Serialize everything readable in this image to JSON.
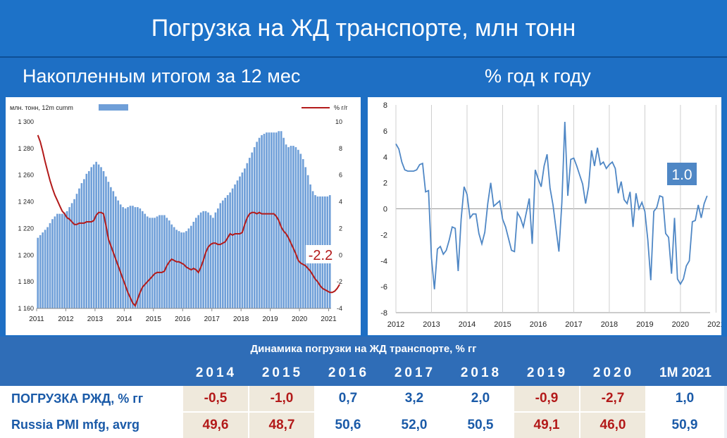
{
  "header": {
    "title": "Погрузка на ЖД транспорте, млн тонн",
    "left_subtitle": "Накопленным итогом за 12 мес",
    "right_subtitle": "% год к году"
  },
  "colors": {
    "bars": "#6f9fd8",
    "line_red": "#b31a1a",
    "line_blue": "#4f87c5",
    "header_bg": "#1d72c8"
  },
  "chart_data": [
    {
      "type": "bar",
      "legend_bar": "млн. тонн, 12m cumm",
      "legend_line": "% г/г",
      "legend_placement": "top",
      "y_left_ticks": [
        "1 300",
        "1 280",
        "1 260",
        "1 240",
        "1 220",
        "1 200",
        "1 180",
        "1 160"
      ],
      "ylim_left": [
        1160,
        1300
      ],
      "y_right_ticks": [
        "10",
        "8",
        "6",
        "4",
        "2",
        "0",
        "-2",
        "-4"
      ],
      "ylim_right": [
        -4,
        10
      ],
      "x_ticks": [
        "2011",
        "2012",
        "2013",
        "2014",
        "2015",
        "2016",
        "2017",
        "2018",
        "2019",
        "2020",
        "2021"
      ],
      "annotation": "-2.2",
      "series": [
        {
          "values": [
            1213,
            1215,
            1217,
            1219,
            1221,
            1224,
            1227,
            1229,
            1231,
            1231,
            1231,
            1232,
            1233,
            1236,
            1239,
            1242,
            1246,
            1250,
            1254,
            1257,
            1261,
            1263,
            1266,
            1268,
            1270,
            1268,
            1266,
            1263,
            1259,
            1255,
            1251,
            1248,
            1244,
            1241,
            1238,
            1236,
            1235,
            1236,
            1237,
            1237,
            1236,
            1236,
            1235,
            1233,
            1231,
            1229,
            1228,
            1228,
            1228,
            1229,
            1230,
            1230,
            1230,
            1228,
            1226,
            1223,
            1221,
            1219,
            1218,
            1217,
            1217,
            1218,
            1220,
            1222,
            1225,
            1228,
            1230,
            1232,
            1233,
            1233,
            1232,
            1230,
            1228,
            1232,
            1235,
            1239,
            1241,
            1243,
            1245,
            1247,
            1250,
            1253,
            1256,
            1259,
            1262,
            1265,
            1269,
            1273,
            1277,
            1281,
            1285,
            1288,
            1290,
            1291,
            1292,
            1292,
            1292,
            1292,
            1292,
            1293,
            1293,
            1288,
            1283,
            1281,
            1282,
            1282,
            1281,
            1279,
            1276,
            1272,
            1266,
            1260,
            1253,
            1248,
            1245,
            1244,
            1244,
            1244,
            1244,
            1244,
            1245
          ]
        },
        {
          "values": [
            9.0,
            8.5,
            7.8,
            7.0,
            6.3,
            5.6,
            5.0,
            4.5,
            4.1,
            3.7,
            3.3,
            3.1,
            2.8,
            2.7,
            2.5,
            2.3,
            2.3,
            2.4,
            2.4,
            2.4,
            2.5,
            2.5,
            2.5,
            2.6,
            3.0,
            3.2,
            3.2,
            3.1,
            2.2,
            1.2,
            0.7,
            0.2,
            -0.3,
            -0.8,
            -1.3,
            -1.8,
            -2.3,
            -2.8,
            -3.2,
            -3.6,
            -3.8,
            -3.3,
            -2.8,
            -2.4,
            -2.2,
            -2.0,
            -1.8,
            -1.6,
            -1.4,
            -1.3,
            -1.3,
            -1.3,
            -1.2,
            -0.8,
            -0.5,
            -0.3,
            -0.4,
            -0.5,
            -0.5,
            -0.6,
            -0.7,
            -0.9,
            -1.0,
            -1.1,
            -1.0,
            -1.1,
            -1.3,
            -0.9,
            -0.4,
            0.2,
            0.6,
            0.8,
            0.9,
            0.9,
            0.8,
            0.8,
            0.9,
            1.0,
            1.3,
            1.6,
            1.5,
            1.6,
            1.6,
            1.6,
            1.7,
            2.3,
            2.8,
            3.1,
            3.2,
            3.2,
            3.1,
            3.2,
            3.1,
            3.1,
            3.1,
            3.1,
            3.1,
            3.1,
            2.9,
            2.6,
            2.1,
            1.8,
            1.6,
            1.3,
            0.9,
            0.5,
            0.1,
            -0.4,
            -0.6,
            -0.7,
            -0.8,
            -1.0,
            -1.2,
            -1.5,
            -1.8,
            -2.0,
            -2.3,
            -2.5,
            -2.6,
            -2.7,
            -2.8,
            -2.8,
            -2.7,
            -2.5,
            -2.2
          ]
        }
      ]
    },
    {
      "type": "line",
      "y_ticks": [
        "8",
        "6",
        "4",
        "2",
        "0",
        "-2",
        "-4",
        "-6",
        "-8"
      ],
      "ylim": [
        -8,
        8
      ],
      "x_ticks": [
        "2012",
        "2013",
        "2014",
        "2015",
        "2016",
        "2017",
        "2018",
        "2019",
        "2020",
        "2021"
      ],
      "annotation": "1.0",
      "series": [
        {
          "values": [
            5.0,
            4.6,
            3.6,
            3.0,
            2.9,
            2.9,
            2.9,
            3.0,
            3.4,
            3.5,
            1.3,
            1.4,
            -3.8,
            -6.2,
            -3.1,
            -2.9,
            -3.5,
            -3.2,
            -2.4,
            -1.4,
            -1.5,
            -4.8,
            -0.8,
            1.7,
            1.1,
            -0.7,
            -0.4,
            -0.4,
            -1.9,
            -2.7,
            -1.8,
            0.4,
            2.0,
            0.2,
            0.4,
            0.6,
            -0.8,
            -1.4,
            -2.3,
            -3.2,
            -3.3,
            -0.3,
            -0.7,
            -1.4,
            -0.3,
            0.8,
            -2.7,
            3.0,
            2.3,
            1.7,
            3.3,
            4.2,
            1.6,
            0.3,
            -1.5,
            -3.3,
            0.5,
            6.7,
            1.0,
            3.8,
            3.9,
            3.3,
            2.6,
            1.9,
            0.4,
            1.7,
            4.5,
            3.3,
            4.7,
            3.4,
            3.6,
            3.1,
            3.4,
            3.6,
            3.1,
            1.2,
            2.1,
            0.7,
            0.4,
            1.3,
            -1.4,
            1.2,
            0.0,
            0.5,
            -0.2,
            -2.4,
            -5.5,
            -0.2,
            0.1,
            1.0,
            0.9,
            -1.9,
            -2.2,
            -5.0,
            -0.7,
            -5.4,
            -5.8,
            -5.4,
            -4.4,
            -4.0,
            -1.0,
            -0.9,
            0.3,
            -0.7,
            0.4,
            1.0
          ]
        }
      ]
    }
  ],
  "table": {
    "header": "Динамика погрузки на ЖД транспорте, % гг",
    "years": [
      "2014",
      "2015",
      "2016",
      "2017",
      "2018",
      "2019",
      "2020",
      "1M 2021"
    ],
    "rows": [
      {
        "label": "ПОГРУЗКА РЖД, % гг",
        "values": [
          "-0,5",
          "-1,0",
          "0,7",
          "3,2",
          "2,0",
          "-0,9",
          "-2,7",
          "1,0"
        ]
      },
      {
        "label": "Russia PMI mfg, avrg",
        "values": [
          "49,6",
          "48,7",
          "50,6",
          "52,0",
          "50,5",
          "49,1",
          "46,0",
          "50,9"
        ]
      }
    ]
  }
}
